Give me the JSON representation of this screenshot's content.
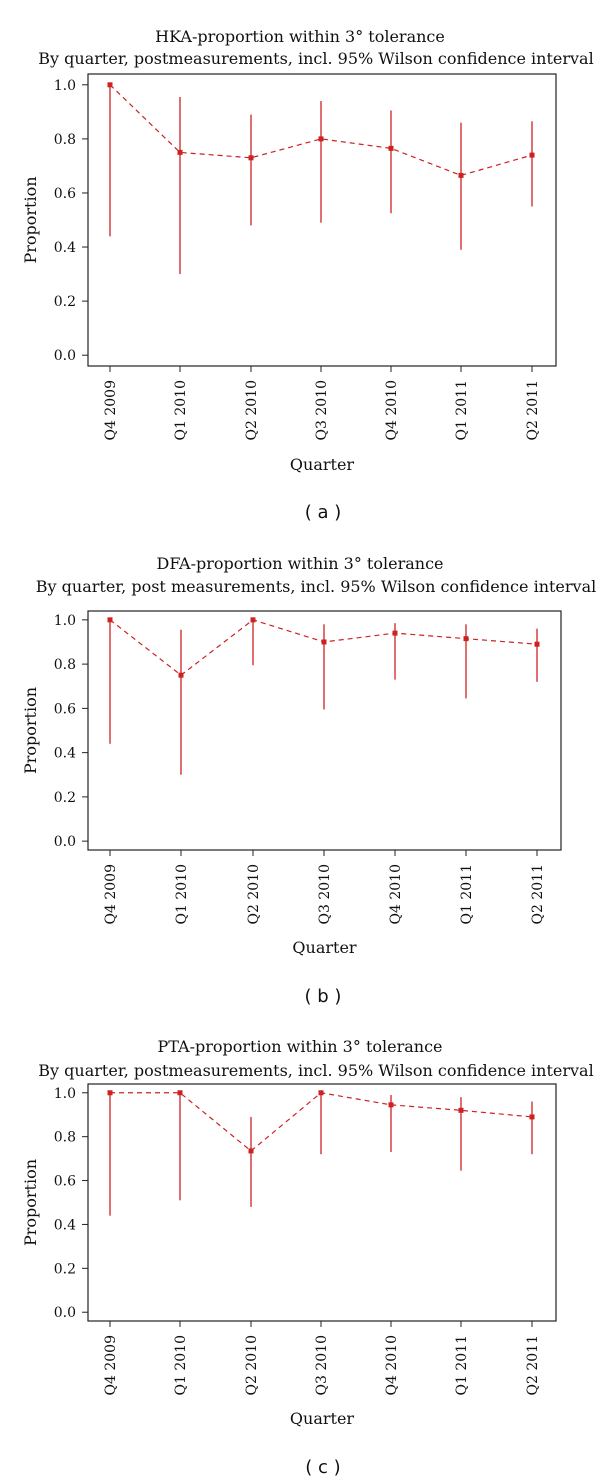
{
  "chart_data": [
    {
      "panel": "( a )",
      "type": "line",
      "title": "HKA-proportion within 3° tolerance",
      "subtitle": "By quarter, postmeasurements, incl. 95% Wilson confidence interval",
      "xlabel": "Quarter",
      "ylabel": "Proportion",
      "ylim": [
        -0.04,
        1.04
      ],
      "yticks": [
        "0.0",
        "0.2",
        "0.4",
        "0.6",
        "0.8",
        "1.0"
      ],
      "categories": [
        "Q4 2009",
        "Q1 2010",
        "Q2 2010",
        "Q3 2010",
        "Q4 2010",
        "Q1 2011",
        "Q2 2011"
      ],
      "values": [
        1.0,
        0.75,
        0.73,
        0.8,
        0.765,
        0.665,
        0.74
      ],
      "ci_lower": [
        0.44,
        0.3,
        0.48,
        0.49,
        0.525,
        0.39,
        0.55
      ],
      "ci_upper": [
        1.0,
        0.955,
        0.89,
        0.94,
        0.905,
        0.86,
        0.865
      ],
      "color": "#cc2222"
    },
    {
      "panel": "( b )",
      "type": "line",
      "title": "DFA-proportion within 3° tolerance",
      "subtitle": "By quarter, post measurements, incl. 95% Wilson confidence interval",
      "xlabel": "Quarter",
      "ylabel": "Proportion",
      "ylim": [
        -0.04,
        1.04
      ],
      "yticks": [
        "0.0",
        "0.2",
        "0.4",
        "0.6",
        "0.8",
        "1.0"
      ],
      "categories": [
        "Q4 2009",
        "Q1 2010",
        "Q2 2010",
        "Q3 2010",
        "Q4 2010",
        "Q1 2011",
        "Q2 2011"
      ],
      "values": [
        1.0,
        0.75,
        1.0,
        0.9,
        0.94,
        0.915,
        0.89
      ],
      "ci_lower": [
        0.44,
        0.3,
        0.795,
        0.595,
        0.73,
        0.645,
        0.72
      ],
      "ci_upper": [
        1.0,
        0.955,
        1.0,
        0.98,
        0.985,
        0.98,
        0.96
      ],
      "color": "#cc2222"
    },
    {
      "panel": "( c )",
      "type": "line",
      "title": "PTA-proportion within 3° tolerance",
      "subtitle": "By quarter, postmeasurements, incl. 95% Wilson confidence interval",
      "xlabel": "Quarter",
      "ylabel": "Proportion",
      "ylim": [
        -0.04,
        1.04
      ],
      "yticks": [
        "0.0",
        "0.2",
        "0.4",
        "0.6",
        "0.8",
        "1.0"
      ],
      "categories": [
        "Q4 2009",
        "Q1 2010",
        "Q2 2010",
        "Q3 2010",
        "Q4 2010",
        "Q1 2011",
        "Q2 2011"
      ],
      "values": [
        1.0,
        1.0,
        0.735,
        1.0,
        0.945,
        0.92,
        0.89
      ],
      "ci_lower": [
        0.44,
        0.51,
        0.48,
        0.72,
        0.73,
        0.645,
        0.72
      ],
      "ci_upper": [
        1.0,
        1.0,
        0.89,
        1.0,
        0.99,
        0.98,
        0.96
      ],
      "color": "#cc2222"
    }
  ]
}
